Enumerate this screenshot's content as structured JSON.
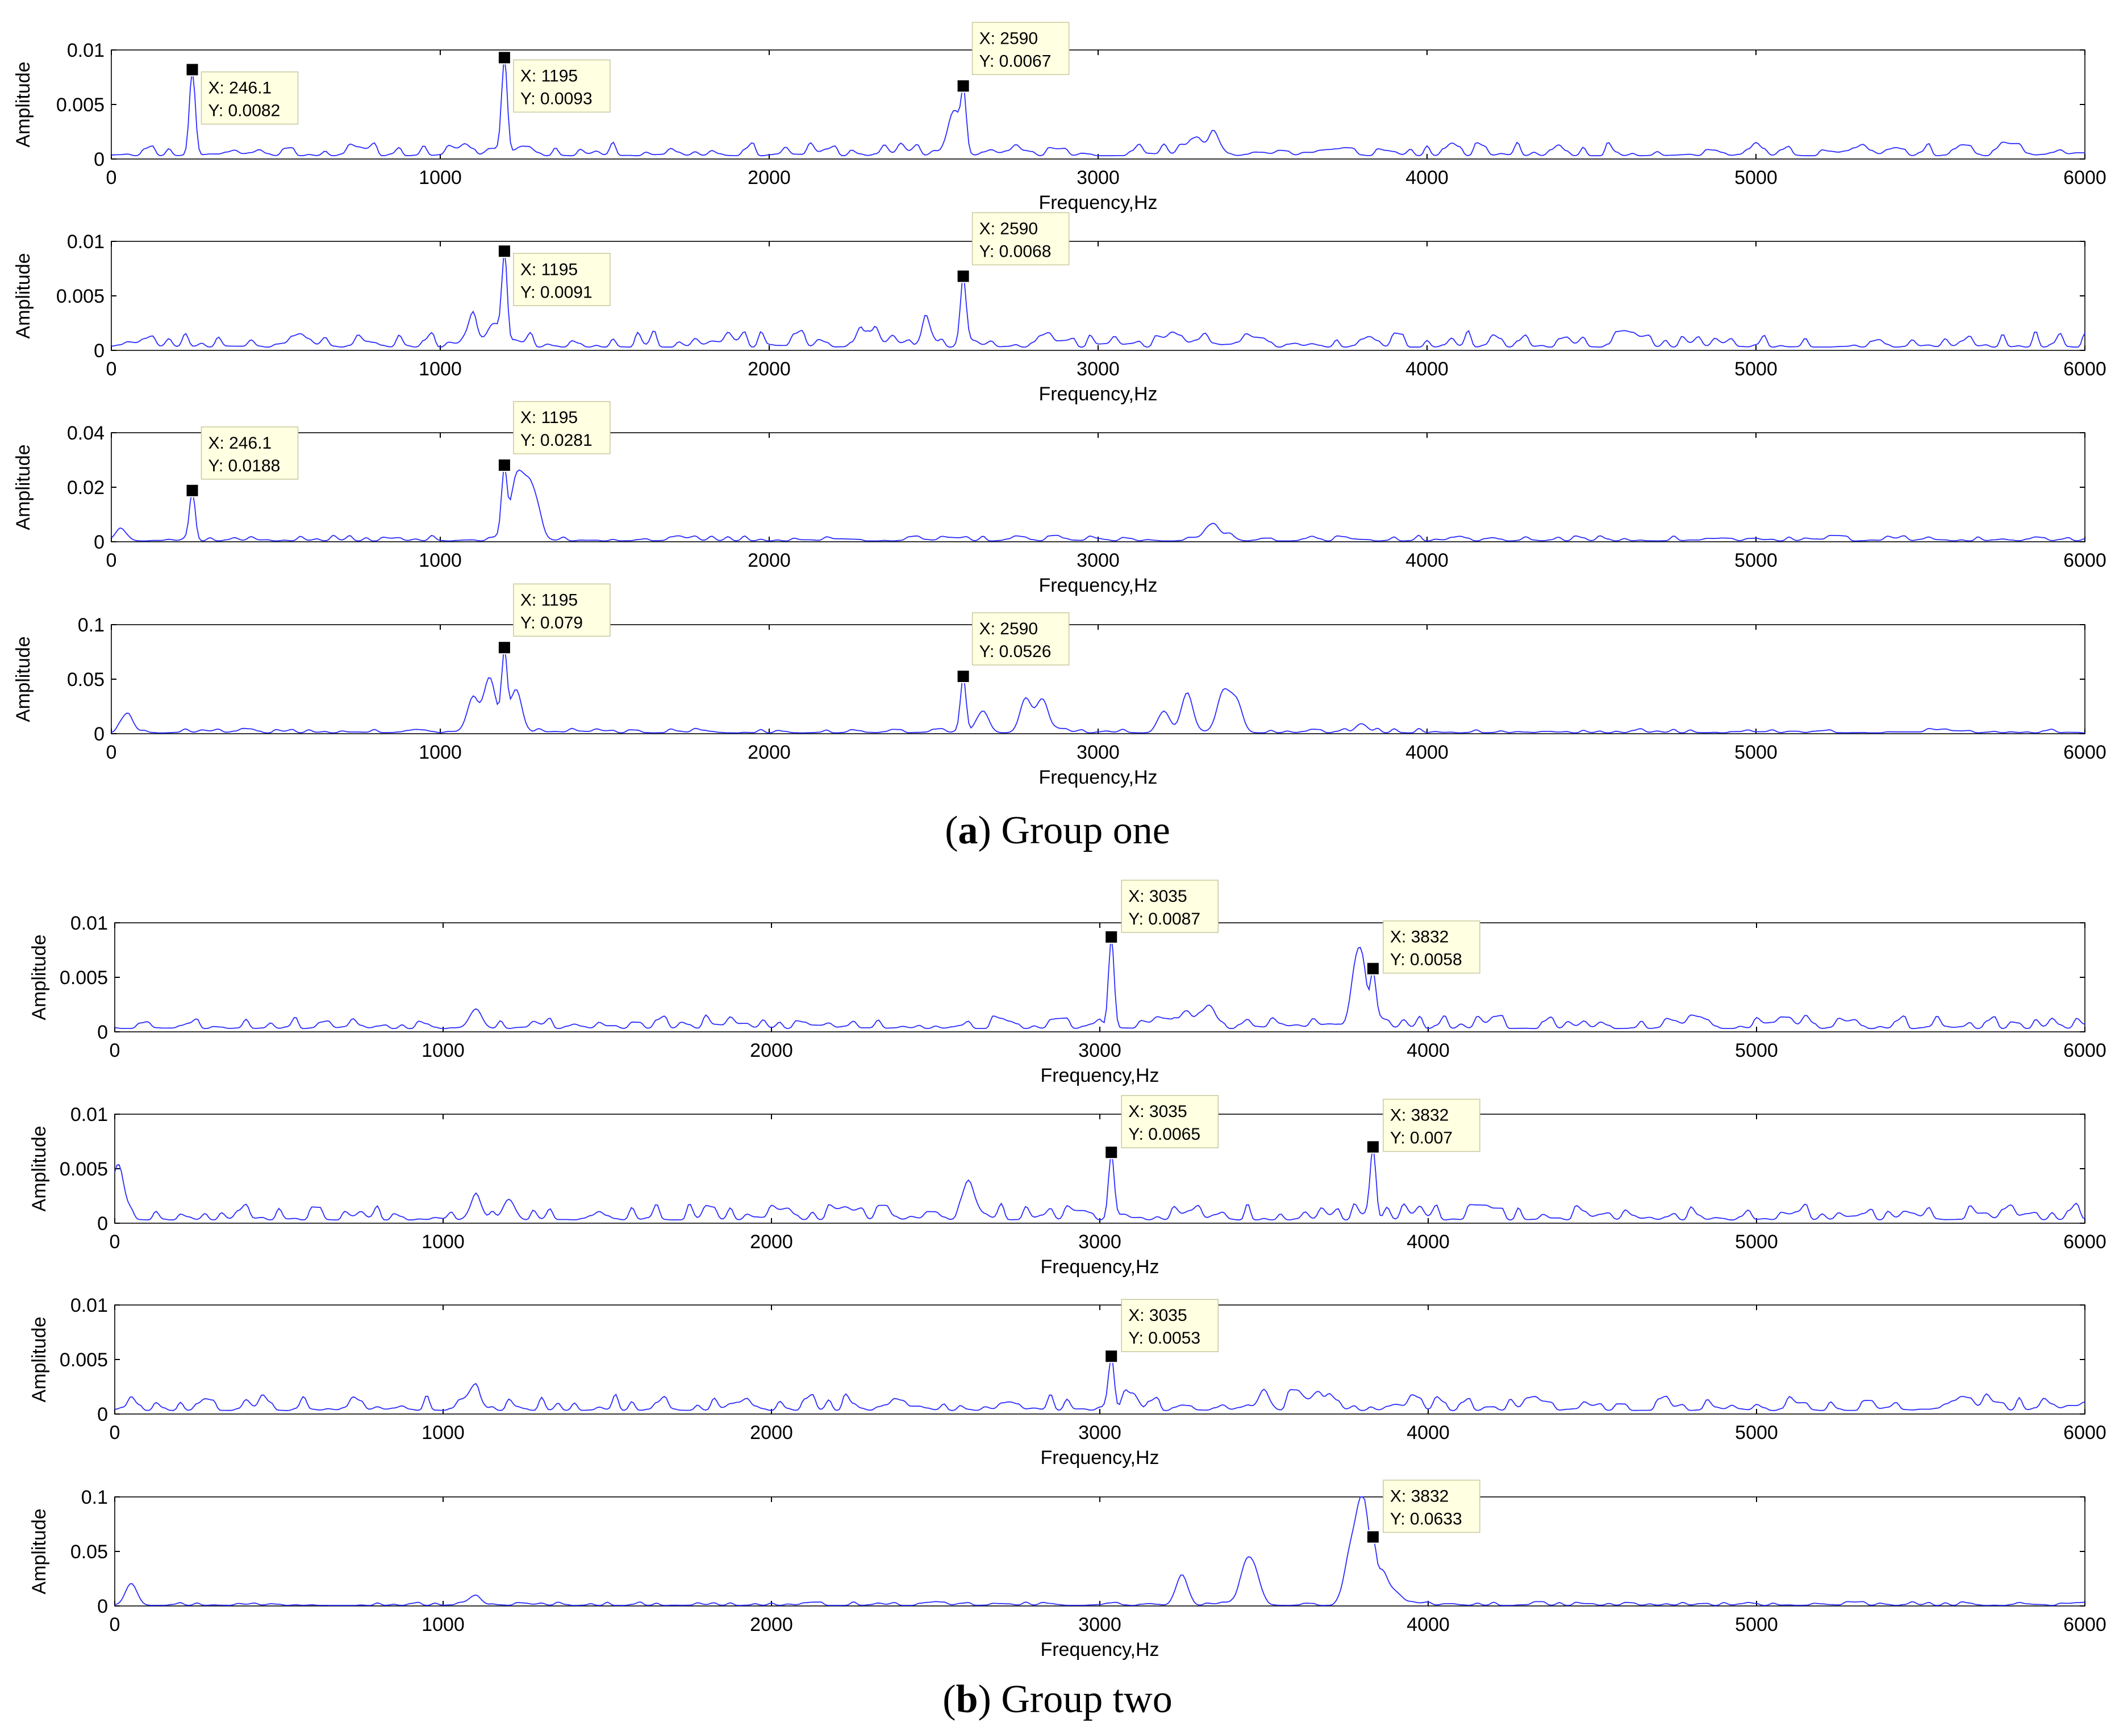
{
  "chart_data": [
    {
      "type": "line",
      "group": 0,
      "xlabel": "Frequency,Hz",
      "ylabel": "Amplitude",
      "xlim": [
        0,
        6000
      ],
      "ylim": [
        0,
        0.01
      ],
      "xticks": [
        0,
        1000,
        2000,
        3000,
        4000,
        5000,
        6000
      ],
      "xtick_labels": [
        "0",
        "1000",
        "2000",
        "3000",
        "4000",
        "5000",
        "6000"
      ],
      "yticks": [
        0,
        0.005,
        0.01
      ],
      "ytick_labels": [
        "0",
        "0.005",
        "0.01"
      ],
      "baseline": 0.0012,
      "noise": 0.0009,
      "seed": 11,
      "bumps": [
        [
          1150,
          0.0004
        ],
        [
          1250,
          0.0008
        ],
        [
          2560,
          0.004
        ],
        [
          3300,
          0.0015
        ],
        [
          3350,
          0.0018
        ]
      ],
      "peaks": [
        [
          246.1,
          0.0082
        ],
        [
          1195,
          0.0093
        ],
        [
          2590,
          0.0067
        ]
      ],
      "datatips": [
        {
          "x": 246.1,
          "y": 0.0082,
          "label_x": "X: 246.1",
          "label_y": "Y: 0.0082"
        },
        {
          "x": 1195,
          "y": 0.0093,
          "label_x": "X: 1195",
          "label_y": "Y: 0.0093"
        },
        {
          "x": 2590,
          "y": 0.0067,
          "label_x": "X: 2590",
          "label_y": "Y: 0.0067"
        }
      ]
    },
    {
      "type": "line",
      "group": 0,
      "xlabel": "Frequency,Hz",
      "ylabel": "Amplitude",
      "xlim": [
        0,
        6000
      ],
      "ylim": [
        0,
        0.01
      ],
      "xticks": [
        0,
        1000,
        2000,
        3000,
        4000,
        5000,
        6000
      ],
      "xtick_labels": [
        "0",
        "1000",
        "2000",
        "3000",
        "4000",
        "5000",
        "6000"
      ],
      "yticks": [
        0,
        0.005,
        0.01
      ],
      "ytick_labels": [
        "0",
        "0.005",
        "0.01"
      ],
      "baseline": 0.0012,
      "noise": 0.0011,
      "seed": 23,
      "bumps": [
        [
          1100,
          0.0018
        ],
        [
          1160,
          0.002
        ],
        [
          2300,
          0.0015
        ],
        [
          2480,
          0.0018
        ]
      ],
      "peaks": [
        [
          1195,
          0.0091
        ],
        [
          2590,
          0.0068
        ]
      ],
      "datatips": [
        {
          "x": 1195,
          "y": 0.0091,
          "label_x": "X: 1195",
          "label_y": "Y: 0.0091"
        },
        {
          "x": 2590,
          "y": 0.0068,
          "label_x": "X: 2590",
          "label_y": "Y: 0.0068"
        }
      ]
    },
    {
      "type": "line",
      "group": 0,
      "xlabel": "Frequency,Hz",
      "ylabel": "Amplitude",
      "xlim": [
        0,
        6000
      ],
      "ylim": [
        0,
        0.04
      ],
      "xticks": [
        0,
        1000,
        2000,
        3000,
        4000,
        5000,
        6000
      ],
      "xtick_labels": [
        "0",
        "1000",
        "2000",
        "3000",
        "4000",
        "5000",
        "6000"
      ],
      "yticks": [
        0,
        0.02,
        0.04
      ],
      "ytick_labels": [
        "0",
        "0.02",
        "0.04"
      ],
      "baseline": 0.0012,
      "noise": 0.0015,
      "seed": 37,
      "bumps": [
        [
          30,
          0.004
        ],
        [
          1230,
          0.02
        ],
        [
          1260,
          0.016
        ],
        [
          1290,
          0.012
        ],
        [
          3350,
          0.006
        ],
        [
          3400,
          0.002
        ]
      ],
      "peaks": [
        [
          246.1,
          0.0188
        ],
        [
          1195,
          0.0281
        ]
      ],
      "datatips": [
        {
          "x": 246.1,
          "y": 0.0188,
          "label_x": "X: 246.1",
          "label_y": "Y: 0.0188"
        },
        {
          "x": 1195,
          "y": 0.0281,
          "label_x": "X: 1195",
          "label_y": "Y: 0.0281"
        }
      ]
    },
    {
      "type": "line",
      "group": 0,
      "xlabel": "Frequency,Hz",
      "ylabel": "Amplitude",
      "xlim": [
        0,
        6000
      ],
      "ylim": [
        0,
        0.1
      ],
      "xticks": [
        0,
        1000,
        2000,
        3000,
        4000,
        5000,
        6000
      ],
      "xtick_labels": [
        "0",
        "1000",
        "2000",
        "3000",
        "4000",
        "5000",
        "6000"
      ],
      "yticks": [
        0,
        0.05,
        0.1
      ],
      "ytick_labels": [
        "0",
        "0.05",
        "0.1"
      ],
      "baseline": 0.003,
      "noise": 0.003,
      "seed": 41,
      "bumps": [
        [
          50,
          0.015
        ],
        [
          1100,
          0.03
        ],
        [
          1150,
          0.05
        ],
        [
          1230,
          0.04
        ],
        [
          2650,
          0.02
        ],
        [
          2780,
          0.03
        ],
        [
          2830,
          0.03
        ],
        [
          3200,
          0.02
        ],
        [
          3270,
          0.035
        ],
        [
          3380,
          0.035
        ],
        [
          3420,
          0.03
        ],
        [
          3800,
          0.008
        ]
      ],
      "peaks": [
        [
          1195,
          0.079
        ],
        [
          2590,
          0.0526
        ]
      ],
      "datatips": [
        {
          "x": 1195,
          "y": 0.079,
          "label_x": "X: 1195",
          "label_y": "Y: 0.079"
        },
        {
          "x": 2590,
          "y": 0.0526,
          "label_x": "X: 2590",
          "label_y": "Y: 0.0526"
        }
      ]
    },
    {
      "type": "line",
      "group": 1,
      "xlabel": "Frequency,Hz",
      "ylabel": "Amplitude",
      "xlim": [
        0,
        6000
      ],
      "ylim": [
        0,
        0.01
      ],
      "xticks": [
        0,
        1000,
        2000,
        3000,
        4000,
        5000,
        6000
      ],
      "xtick_labels": [
        "0",
        "1000",
        "2000",
        "3000",
        "4000",
        "5000",
        "6000"
      ],
      "yticks": [
        0,
        0.005,
        0.01
      ],
      "ytick_labels": [
        "0",
        "0.005",
        "0.01"
      ],
      "baseline": 0.0012,
      "noise": 0.0009,
      "seed": 53,
      "bumps": [
        [
          1100,
          0.0018
        ],
        [
          3260,
          0.0015
        ],
        [
          3330,
          0.002
        ],
        [
          3780,
          0.004
        ],
        [
          3800,
          0.004
        ]
      ],
      "peaks": [
        [
          3035,
          0.0087
        ],
        [
          3832,
          0.0058
        ]
      ],
      "datatips": [
        {
          "x": 3035,
          "y": 0.0087,
          "label_x": "X: 3035",
          "label_y": "Y: 0.0087"
        },
        {
          "x": 3832,
          "y": 0.0058,
          "label_x": "X: 3832",
          "label_y": "Y: 0.0058"
        }
      ]
    },
    {
      "type": "line",
      "group": 1,
      "xlabel": "Frequency,Hz",
      "ylabel": "Amplitude",
      "xlim": [
        0,
        6000
      ],
      "ylim": [
        0,
        0.01
      ],
      "xticks": [
        0,
        1000,
        2000,
        3000,
        4000,
        5000,
        6000
      ],
      "xtick_labels": [
        "0",
        "1000",
        "2000",
        "3000",
        "4000",
        "5000",
        "6000"
      ],
      "yticks": [
        0,
        0.005,
        0.01
      ],
      "ytick_labels": [
        "0",
        "0.005",
        "0.01"
      ],
      "baseline": 0.0012,
      "noise": 0.0011,
      "seed": 67,
      "bumps": [
        [
          10,
          0.005
        ],
        [
          1100,
          0.002
        ],
        [
          1200,
          0.0018
        ],
        [
          2600,
          0.0025
        ]
      ],
      "peaks": [
        [
          3035,
          0.0065
        ],
        [
          3832,
          0.007
        ]
      ],
      "datatips": [
        {
          "x": 3035,
          "y": 0.0065,
          "label_x": "X: 3035",
          "label_y": "Y: 0.0065"
        },
        {
          "x": 3832,
          "y": 0.007,
          "label_x": "X: 3832",
          "label_y": "Y: 0.007"
        }
      ]
    },
    {
      "type": "line",
      "group": 1,
      "xlabel": "Frequency,Hz",
      "ylabel": "Amplitude",
      "xlim": [
        0,
        6000
      ],
      "ylim": [
        0,
        0.01
      ],
      "xticks": [
        0,
        1000,
        2000,
        3000,
        4000,
        5000,
        6000
      ],
      "xtick_labels": [
        "0",
        "1000",
        "2000",
        "3000",
        "4000",
        "5000",
        "6000"
      ],
      "yticks": [
        0,
        0.005,
        0.01
      ],
      "ytick_labels": [
        "0",
        "0.005",
        "0.01"
      ],
      "baseline": 0.0013,
      "noise": 0.0011,
      "seed": 79,
      "bumps": [
        [
          1100,
          0.0015
        ],
        [
          3100,
          0.0015
        ],
        [
          3500,
          0.0015
        ],
        [
          3600,
          0.0015
        ],
        [
          3660,
          0.0015
        ]
      ],
      "peaks": [
        [
          3035,
          0.0053
        ]
      ],
      "datatips": [
        {
          "x": 3035,
          "y": 0.0053,
          "label_x": "X: 3035",
          "label_y": "Y: 0.0053"
        }
      ]
    },
    {
      "type": "line",
      "group": 1,
      "xlabel": "Frequency,Hz",
      "ylabel": "Amplitude",
      "xlim": [
        0,
        6000
      ],
      "ylim": [
        0,
        0.1
      ],
      "xticks": [
        0,
        1000,
        2000,
        3000,
        4000,
        5000,
        6000
      ],
      "xtick_labels": [
        "0",
        "1000",
        "2000",
        "3000",
        "4000",
        "5000",
        "6000"
      ],
      "yticks": [
        0,
        0.05,
        0.1
      ],
      "ytick_labels": [
        "0",
        "0.05",
        "0.1"
      ],
      "baseline": 0.002,
      "noise": 0.0025,
      "seed": 97,
      "bumps": [
        [
          50,
          0.02
        ],
        [
          1100,
          0.008
        ],
        [
          3250,
          0.025
        ],
        [
          3440,
          0.03
        ],
        [
          3470,
          0.03
        ],
        [
          3760,
          0.04
        ],
        [
          3790,
          0.055
        ],
        [
          3810,
          0.06
        ],
        [
          3860,
          0.03
        ],
        [
          3900,
          0.01
        ]
      ],
      "peaks": [
        [
          3832,
          0.0633
        ]
      ],
      "datatips": [
        {
          "x": 3832,
          "y": 0.0633,
          "label_x": "X: 3832",
          "label_y": "Y: 0.0633"
        }
      ]
    }
  ],
  "captions": [
    {
      "letter": "a",
      "text": " Group one"
    },
    {
      "letter": "b",
      "text": " Group two"
    }
  ],
  "colors": {
    "line": "#2b2bff",
    "axes": "#000000",
    "grid_tick": "#000000",
    "tip_fill": "#ffffe1",
    "tip_border": "#c8c8a0",
    "marker": "#000000"
  }
}
